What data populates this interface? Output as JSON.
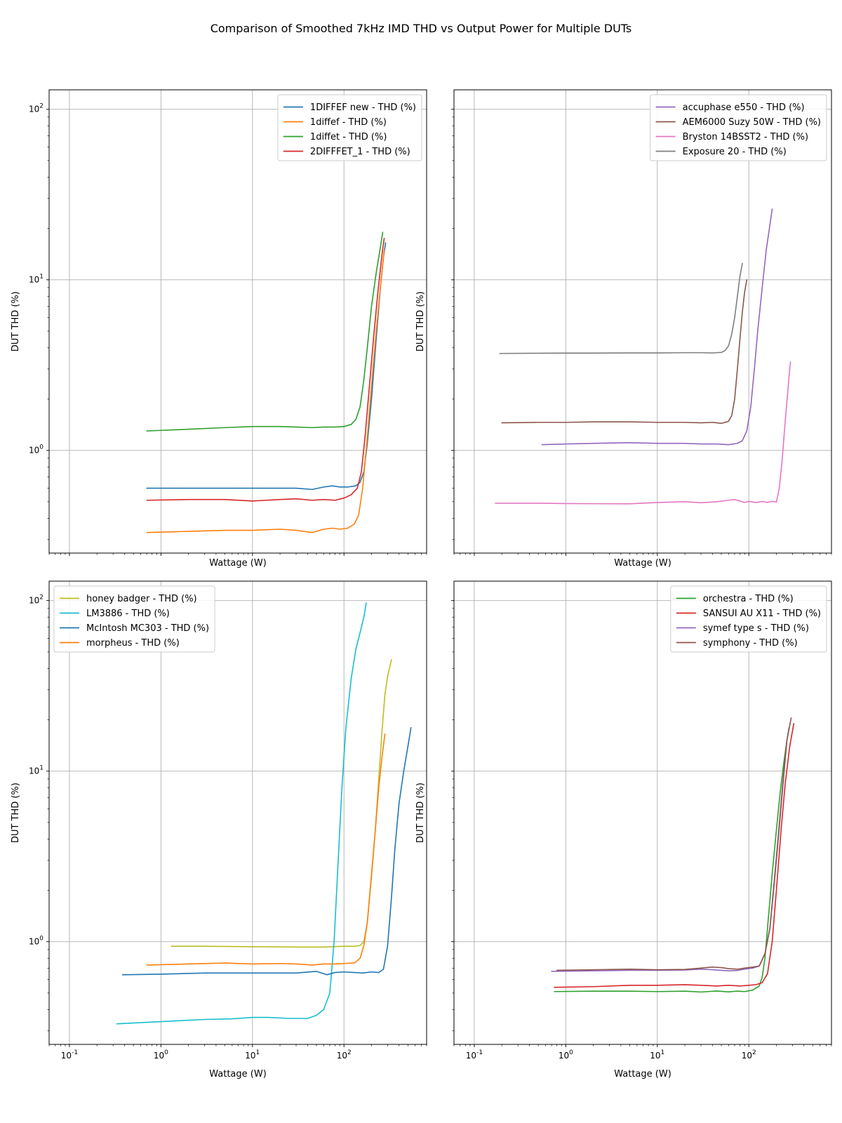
{
  "figure_title": "Comparison of Smoothed 7kHz IMD THD vs Output Power for Multiple DUTs",
  "colors": {
    "tab_blue": "#1f77b4",
    "tab_orange": "#ff7f0e",
    "tab_green": "#2ca02c",
    "tab_red": "#d62728",
    "tab_purple": "#9467bd",
    "tab_brown": "#8c564b",
    "tab_pink": "#e377c2",
    "tab_gray": "#7f7f7f",
    "tab_olive": "#bcbd22",
    "tab_cyan": "#17becf",
    "grid": "#b0b0b0"
  },
  "chart_data": [
    {
      "type": "line",
      "xlabel": "Wattage (W)",
      "ylabel": "DUT THD (%)",
      "xscale": "log",
      "yscale": "log",
      "xlim": [
        0.06,
        800
      ],
      "ylim": [
        0.25,
        130
      ],
      "grid": true,
      "legend_position": "top-right",
      "xtick_labels": [],
      "ytick_labels": [
        "10^0",
        "10^1",
        "10^2"
      ],
      "series": [
        {
          "name": "1DIFFEF new - THD (%)",
          "color": "#1f77b4",
          "x": [
            0.7,
            2,
            5,
            10,
            20,
            30,
            45,
            60,
            75,
            90,
            110,
            135,
            150,
            165,
            180,
            200,
            225,
            250,
            270,
            285
          ],
          "y": [
            0.6,
            0.6,
            0.6,
            0.6,
            0.6,
            0.6,
            0.59,
            0.61,
            0.62,
            0.61,
            0.61,
            0.62,
            0.65,
            0.75,
            1.1,
            2.0,
            4.5,
            9.0,
            13.5,
            16.5
          ]
        },
        {
          "name": "1diffef - THD (%)",
          "color": "#ff7f0e",
          "x": [
            0.7,
            2,
            5,
            10,
            20,
            30,
            45,
            60,
            75,
            90,
            110,
            130,
            145,
            160,
            180,
            200,
            225,
            250,
            275
          ],
          "y": [
            0.33,
            0.335,
            0.34,
            0.34,
            0.345,
            0.34,
            0.33,
            0.345,
            0.35,
            0.345,
            0.35,
            0.37,
            0.42,
            0.6,
            1.2,
            2.4,
            5.0,
            9.0,
            15.0
          ]
        },
        {
          "name": "1diffet - THD (%)",
          "color": "#2ca02c",
          "x": [
            0.7,
            2,
            5,
            10,
            20,
            30,
            45,
            60,
            80,
            100,
            120,
            135,
            150,
            165,
            180,
            200,
            225,
            250,
            265
          ],
          "y": [
            1.3,
            1.33,
            1.36,
            1.38,
            1.38,
            1.37,
            1.36,
            1.37,
            1.37,
            1.38,
            1.42,
            1.52,
            1.8,
            2.6,
            4.0,
            7.0,
            11.0,
            15.5,
            19.0
          ]
        },
        {
          "name": "2DIFFFET_1 - THD (%)",
          "color": "#d62728",
          "x": [
            0.7,
            2,
            5,
            10,
            20,
            30,
            45,
            60,
            80,
            100,
            120,
            140,
            155,
            170,
            190,
            210,
            235,
            260,
            275
          ],
          "y": [
            0.51,
            0.515,
            0.515,
            0.505,
            0.515,
            0.52,
            0.51,
            0.515,
            0.51,
            0.525,
            0.55,
            0.6,
            0.75,
            1.2,
            2.4,
            4.5,
            8.5,
            14.0,
            17.5
          ]
        }
      ]
    },
    {
      "type": "line",
      "xlabel": "Wattage (W)",
      "ylabel": "DUT THD (%)",
      "xscale": "log",
      "yscale": "log",
      "xlim": [
        0.06,
        800
      ],
      "ylim": [
        0.25,
        130
      ],
      "grid": true,
      "legend_position": "top-right",
      "xtick_labels": [],
      "ytick_labels": [],
      "series": [
        {
          "name": "accuphase e550 - THD (%)",
          "color": "#9467bd",
          "x": [
            0.55,
            1,
            2,
            5,
            10,
            20,
            30,
            45,
            60,
            75,
            85,
            95,
            105,
            115,
            125,
            140,
            155,
            170,
            180
          ],
          "y": [
            1.08,
            1.09,
            1.1,
            1.11,
            1.1,
            1.1,
            1.09,
            1.09,
            1.08,
            1.1,
            1.14,
            1.3,
            1.8,
            3.0,
            5.0,
            9.0,
            15.0,
            21.0,
            26.0
          ]
        },
        {
          "name": "AEM6000 Suzy 50W - THD (%)",
          "color": "#8c564b",
          "x": [
            0.2,
            0.5,
            1,
            2,
            5,
            10,
            20,
            30,
            40,
            50,
            60,
            65,
            70,
            75,
            80,
            85,
            90,
            95
          ],
          "y": [
            1.45,
            1.46,
            1.46,
            1.47,
            1.47,
            1.46,
            1.46,
            1.45,
            1.46,
            1.44,
            1.48,
            1.6,
            2.0,
            3.0,
            4.5,
            6.5,
            8.5,
            10.0
          ]
        },
        {
          "name": "Bryston 14BSST2 - THD (%)",
          "color": "#e377c2",
          "x": [
            0.17,
            0.5,
            1,
            2,
            5,
            10,
            20,
            30,
            45,
            60,
            70,
            80,
            90,
            100,
            120,
            140,
            160,
            180,
            200,
            215,
            230,
            245,
            260,
            275,
            285
          ],
          "y": [
            0.49,
            0.49,
            0.488,
            0.487,
            0.486,
            0.495,
            0.5,
            0.493,
            0.5,
            0.51,
            0.515,
            0.505,
            0.495,
            0.502,
            0.495,
            0.502,
            0.495,
            0.503,
            0.497,
            0.6,
            0.85,
            1.3,
            1.9,
            2.7,
            3.3
          ]
        },
        {
          "name": "Exposure 20 - THD (%)",
          "color": "#7f7f7f",
          "x": [
            0.19,
            0.5,
            1,
            2,
            5,
            10,
            20,
            30,
            40,
            50,
            55,
            60,
            65,
            70,
            75,
            80,
            85
          ],
          "y": [
            3.7,
            3.71,
            3.72,
            3.72,
            3.73,
            3.73,
            3.74,
            3.74,
            3.73,
            3.75,
            3.85,
            4.1,
            4.8,
            6.0,
            8.0,
            10.5,
            12.5
          ]
        }
      ]
    },
    {
      "type": "line",
      "xlabel": "Wattage (W)",
      "ylabel": "DUT THD (%)",
      "xscale": "log",
      "yscale": "log",
      "xlim": [
        0.06,
        800
      ],
      "ylim": [
        0.25,
        130
      ],
      "grid": true,
      "legend_position": "top-left",
      "xtick_labels": [
        "10^0",
        "10^1",
        "10^2"
      ],
      "ytick_labels": [
        "10^0",
        "10^1",
        "10^2"
      ],
      "series": [
        {
          "name": "honey badger - THD (%)",
          "color": "#bcbd22",
          "x": [
            1.3,
            3,
            10,
            30,
            60,
            100,
            130,
            150,
            165,
            180,
            200,
            220,
            240,
            260,
            280,
            300,
            330
          ],
          "y": [
            0.94,
            0.94,
            0.935,
            0.93,
            0.93,
            0.94,
            0.94,
            0.95,
            1.0,
            1.3,
            2.4,
            4.5,
            9.0,
            17.0,
            28.0,
            36.0,
            45.0
          ]
        },
        {
          "name": "LM3886 - THD (%)",
          "color": "#17becf",
          "x": [
            0.33,
            1,
            3,
            6,
            10,
            15,
            25,
            40,
            50,
            60,
            70,
            78,
            85,
            95,
            105,
            120,
            135,
            150,
            165,
            175
          ],
          "y": [
            0.33,
            0.34,
            0.35,
            0.353,
            0.36,
            0.36,
            0.355,
            0.355,
            0.37,
            0.4,
            0.5,
            1.0,
            2.5,
            8.0,
            18.0,
            35.0,
            52.0,
            65.0,
            80.0,
            97.0
          ]
        },
        {
          "name": "McIntosh MC303 - THD (%)",
          "color": "#1f77b4",
          "x": [
            0.38,
            1,
            3,
            10,
            30,
            50,
            65,
            80,
            100,
            130,
            160,
            200,
            240,
            270,
            300,
            330,
            360,
            400,
            450,
            500,
            540
          ],
          "y": [
            0.64,
            0.645,
            0.655,
            0.655,
            0.655,
            0.67,
            0.64,
            0.66,
            0.665,
            0.66,
            0.655,
            0.665,
            0.66,
            0.69,
            0.95,
            1.8,
            3.5,
            6.5,
            10.0,
            14.0,
            18.0
          ]
        },
        {
          "name": "morpheus - THD (%)",
          "color": "#ff7f0e",
          "x": [
            0.7,
            2,
            5,
            10,
            20,
            30,
            45,
            60,
            80,
            100,
            130,
            150,
            165,
            180,
            200,
            220,
            240,
            260,
            280
          ],
          "y": [
            0.73,
            0.74,
            0.75,
            0.74,
            0.745,
            0.74,
            0.73,
            0.74,
            0.74,
            0.745,
            0.75,
            0.8,
            0.95,
            1.3,
            2.5,
            4.5,
            8.0,
            12.0,
            16.5
          ]
        }
      ]
    },
    {
      "type": "line",
      "xlabel": "Wattage (W)",
      "ylabel": "DUT THD (%)",
      "xscale": "log",
      "yscale": "log",
      "xlim": [
        0.06,
        800
      ],
      "ylim": [
        0.25,
        130
      ],
      "grid": true,
      "legend_position": "top-right",
      "xtick_labels": [
        "10^0",
        "10^1",
        "10^2"
      ],
      "ytick_labels": [],
      "series": [
        {
          "name": "orchestra - THD (%)",
          "color": "#2ca02c",
          "x": [
            0.75,
            2,
            5,
            10,
            20,
            30,
            45,
            60,
            75,
            90,
            110,
            130,
            140,
            150,
            160,
            180,
            200,
            220,
            240,
            260,
            275
          ],
          "y": [
            0.51,
            0.513,
            0.513,
            0.51,
            0.513,
            0.507,
            0.514,
            0.508,
            0.513,
            0.51,
            0.52,
            0.55,
            0.62,
            0.8,
            1.2,
            2.5,
            4.5,
            7.5,
            11.0,
            15.0,
            18.0
          ]
        },
        {
          "name": "SANSUI AU X11 - THD (%)",
          "color": "#d62728",
          "x": [
            0.75,
            2,
            5,
            10,
            20,
            30,
            45,
            60,
            80,
            100,
            120,
            140,
            160,
            180,
            200,
            225,
            250,
            280,
            310
          ],
          "y": [
            0.54,
            0.545,
            0.555,
            0.555,
            0.56,
            0.555,
            0.55,
            0.555,
            0.55,
            0.555,
            0.56,
            0.575,
            0.65,
            1.0,
            2.0,
            4.5,
            8.5,
            14.0,
            19.0
          ]
        },
        {
          "name": "symef type s - THD (%)",
          "color": "#9467bd",
          "x": [
            0.7,
            2,
            5,
            10,
            20,
            30,
            40,
            50,
            60,
            75,
            90,
            110,
            130,
            150,
            170,
            190,
            210,
            235,
            260
          ],
          "y": [
            0.67,
            0.675,
            0.68,
            0.68,
            0.682,
            0.69,
            0.685,
            0.68,
            0.675,
            0.678,
            0.69,
            0.7,
            0.72,
            0.85,
            1.2,
            2.2,
            4.0,
            8.0,
            15.0
          ]
        },
        {
          "name": "symphony - THD (%)",
          "color": "#8c564b",
          "x": [
            0.8,
            2,
            5,
            10,
            20,
            30,
            40,
            50,
            60,
            75,
            90,
            110,
            130,
            150,
            170,
            190,
            210,
            235,
            260,
            290
          ],
          "y": [
            0.68,
            0.685,
            0.69,
            0.685,
            0.688,
            0.7,
            0.71,
            0.705,
            0.695,
            0.69,
            0.7,
            0.71,
            0.72,
            0.85,
            1.2,
            2.3,
            4.2,
            8.5,
            15.0,
            20.5
          ]
        }
      ]
    }
  ]
}
